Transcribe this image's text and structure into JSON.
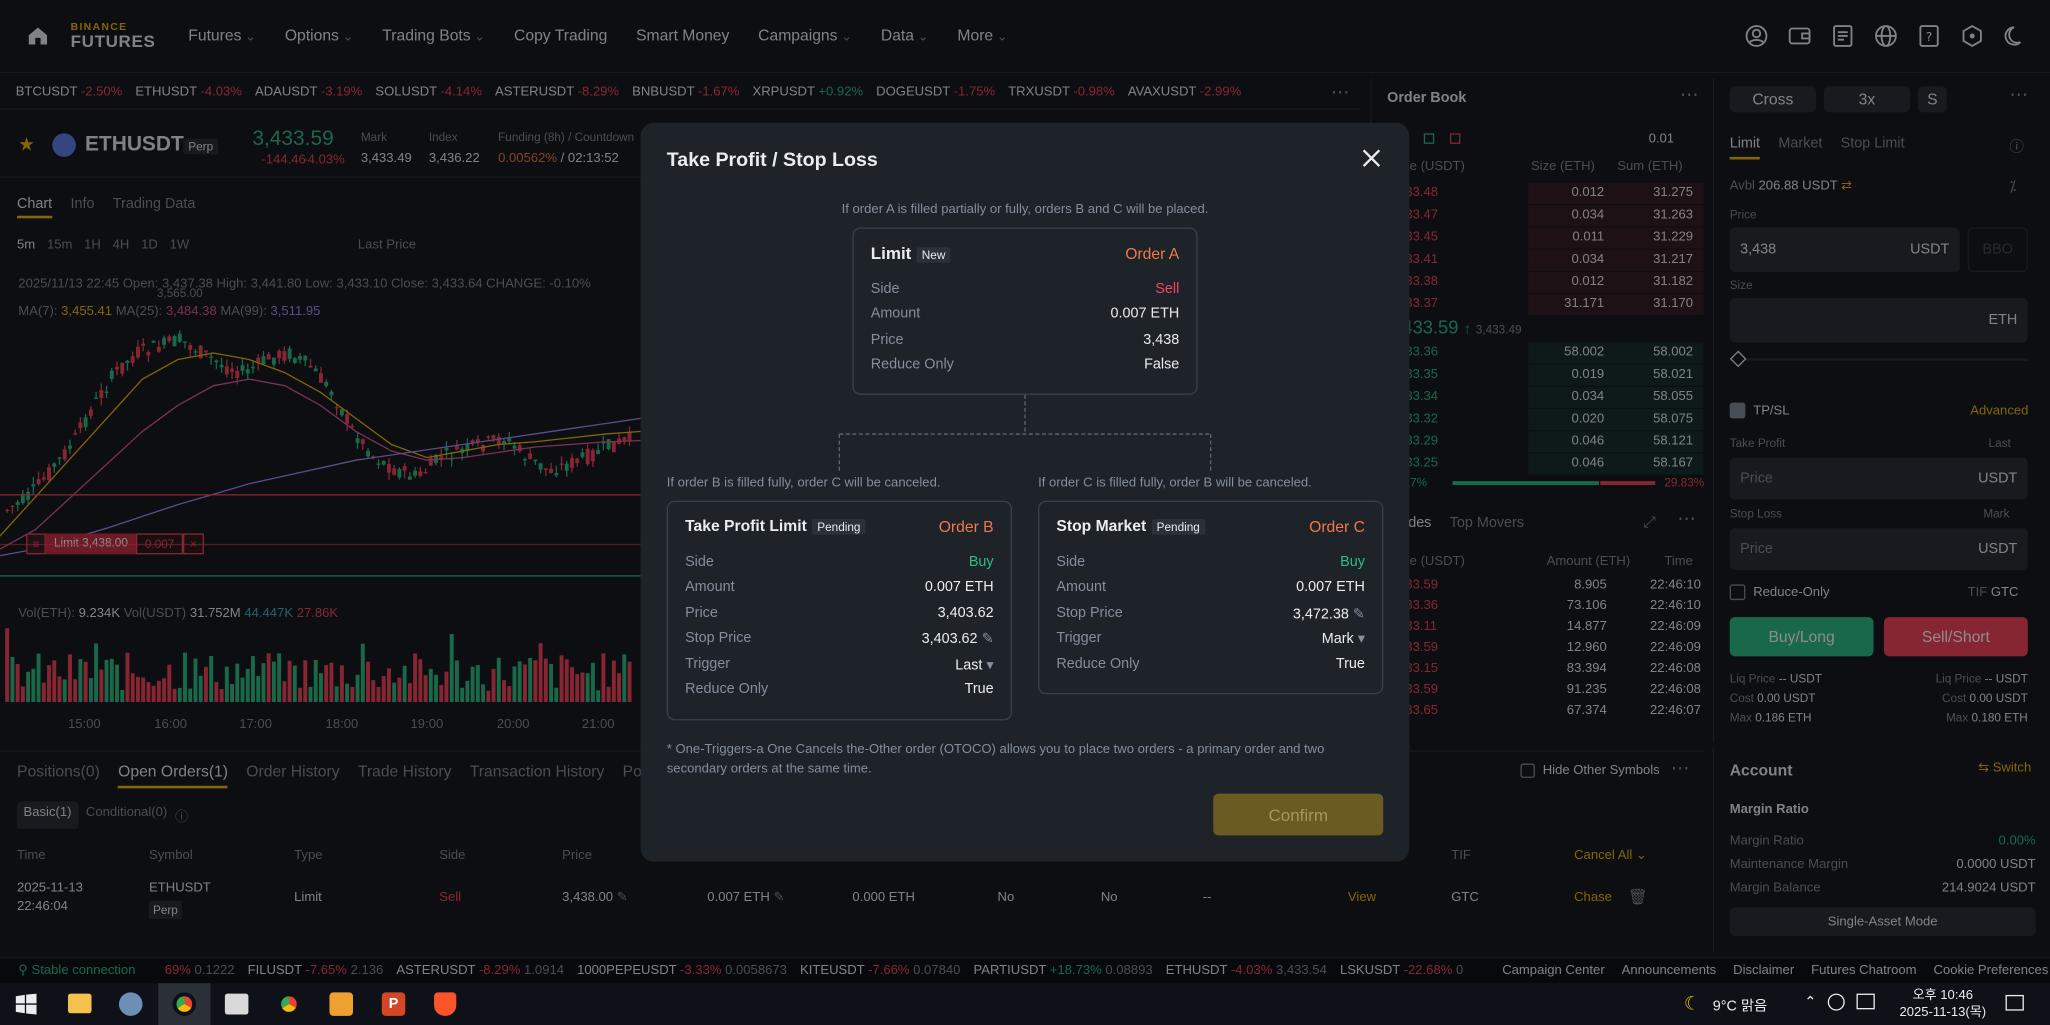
{
  "topbar": {
    "logo_top": "BINANCE",
    "logo_bottom": "FUTURES",
    "nav": [
      "Futures",
      "Options",
      "Trading Bots",
      "Copy Trading",
      "Smart Money",
      "Campaigns",
      "Data",
      "More"
    ]
  },
  "tickers": [
    {
      "sym": "BTCUSDT",
      "chg": "-2.50%",
      "up": false
    },
    {
      "sym": "ETHUSDT",
      "chg": "-4.03%",
      "up": false
    },
    {
      "sym": "ADAUSDT",
      "chg": "-3.19%",
      "up": false
    },
    {
      "sym": "SOLUSDT",
      "chg": "-4.14%",
      "up": false
    },
    {
      "sym": "ASTERUSDT",
      "chg": "-8.29%",
      "up": false
    },
    {
      "sym": "BNBUSDT",
      "chg": "-1.67%",
      "up": false
    },
    {
      "sym": "XRPUSDT",
      "chg": "+0.92%",
      "up": true
    },
    {
      "sym": "DOGEUSDT",
      "chg": "-1.75%",
      "up": false
    },
    {
      "sym": "TRXUSDT",
      "chg": "-0.98%",
      "up": false
    },
    {
      "sym": "AVAXUSDT",
      "chg": "-2.99%",
      "up": false
    }
  ],
  "symbol": {
    "name": "ETHUSDT",
    "type": "Perp",
    "price": "3,433.59",
    "chg": "-144.46",
    "chgp": "-4.03%",
    "mark_label": "Mark",
    "mark": "3,433.49",
    "index_label": "Index",
    "index": "3,436.22",
    "funding_label": "Funding (8h) / Countdown",
    "funding": "0.00562%",
    "countdown": "02:13:52"
  },
  "chart_tabs": [
    "Chart",
    "Info",
    "Trading Data"
  ],
  "intervals": [
    "5m",
    "15m",
    "1H",
    "4H",
    "1D",
    "1W"
  ],
  "last_price_label": "Last Price",
  "ohlc": "2025/11/13 22:45  Open: 3,437.38  High: 3,441.80  Low: 3,433.10  Close: 3,433.64  CHANGE: -0.10%",
  "ma": {
    "ma7": "3,455.41",
    "ma25": "3,484.38",
    "ma99": "3,511.95"
  },
  "limit_tag": {
    "label": "Limit 3,438.00",
    "qty": "0.007"
  },
  "vol": {
    "label": "Vol(ETH):",
    "eth": "9.234K",
    "usdt_label": "Vol(USDT)",
    "usdt": "31.752M",
    "v1": "44.447K",
    "v2": "27.86K"
  },
  "time_axis": [
    "15:00",
    "16:00",
    "17:00",
    "18:00",
    "19:00",
    "20:00",
    "21:00"
  ],
  "peak_label": "3,565.00",
  "orderbook": {
    "title": "Order Book",
    "tick": "0.01",
    "headers": [
      "Price (USDT)",
      "Size (ETH)",
      "Sum (ETH)"
    ],
    "asks": [
      [
        "3,433.48",
        "0.012",
        "31.275"
      ],
      [
        "3,433.47",
        "0.034",
        "31.263"
      ],
      [
        "3,433.45",
        "0.011",
        "31.229"
      ],
      [
        "3,433.41",
        "0.034",
        "31.217"
      ],
      [
        "3,433.38",
        "0.012",
        "31.182"
      ],
      [
        "3,433.37",
        "31.171",
        "31.170"
      ]
    ],
    "mid": "3,433.59",
    "mid_mark": "3,433.49",
    "bids": [
      [
        "3,433.36",
        "58.002",
        "58.002"
      ],
      [
        "3,433.35",
        "0.019",
        "58.021"
      ],
      [
        "3,433.34",
        "0.034",
        "58.055"
      ],
      [
        "3,433.32",
        "0.020",
        "58.075"
      ],
      [
        "3,433.29",
        "0.046",
        "58.121"
      ],
      [
        "3,433.25",
        "0.046",
        "58.167"
      ]
    ],
    "buy_pct": "70.17%",
    "sell_pct": "29.83%"
  },
  "trades": {
    "tab1": "Trades",
    "tab2": "Top Movers",
    "headers": [
      "Price (USDT)",
      "Amount (ETH)",
      "Time"
    ],
    "rows": [
      [
        "3,433.59",
        "8.905",
        "22:46:10"
      ],
      [
        "3,433.36",
        "73.106",
        "22:46:10"
      ],
      [
        "3,433.11",
        "14.877",
        "22:46:09"
      ],
      [
        "3,433.59",
        "12.960",
        "22:46:09"
      ],
      [
        "3,433.15",
        "83.394",
        "22:46:08"
      ],
      [
        "3,433.59",
        "91.235",
        "22:46:08"
      ],
      [
        "3,433.65",
        "67.374",
        "22:46:07"
      ]
    ]
  },
  "orderform": {
    "margin": "Cross",
    "leverage": "3x",
    "mode": "S",
    "types": [
      "Limit",
      "Market",
      "Stop Limit"
    ],
    "avbl_label": "Avbl",
    "avbl": "206.88 USDT",
    "price_label": "Price",
    "price": "3,438",
    "unit": "USDT",
    "bbo": "BBO",
    "size_label": "Size",
    "size_unit": "ETH",
    "tpsl": "TP/SL",
    "advanced": "Advanced",
    "tp_label": "Take Profit",
    "tp_trig": "Last",
    "tp_ph": "Price",
    "sl_label": "Stop Loss",
    "sl_trig": "Mark",
    "sl_ph": "Price",
    "reduce": "Reduce-Only",
    "tif_label": "TIF",
    "tif": "GTC",
    "buy": "Buy/Long",
    "sell": "Sell/Short",
    "liq_l": "Liq Price",
    "liq_lv": "-- USDT",
    "liq_r": "Liq Price",
    "liq_rv": "-- USDT",
    "cost_l": "Cost",
    "cost_lv": "0.00 USDT",
    "cost_r": "Cost",
    "cost_rv": "0.00 USDT",
    "max_l": "Max",
    "max_lv": "0.186 ETH",
    "max_r": "Max",
    "max_rv": "0.180 ETH"
  },
  "account": {
    "title": "Account",
    "switch": "Switch",
    "mr_title": "Margin Ratio",
    "mr_label": "Margin Ratio",
    "mr": "0.00%",
    "mm_label": "Maintenance Margin",
    "mm": "0.0000 USDT",
    "mb_label": "Margin Balance",
    "mb": "214.9024 USDT",
    "mode": "Single-Asset Mode"
  },
  "bottom": {
    "tabs": [
      "Positions(0)",
      "Open Orders(1)",
      "Order History",
      "Trade History",
      "Transaction History",
      "Position"
    ],
    "hide": "Hide Other Symbols",
    "sub": [
      "Basic(1)",
      "Conditional(0)"
    ],
    "cols": [
      "Time",
      "Symbol",
      "Type",
      "Side",
      "Price",
      "",
      "",
      "",
      "",
      "",
      "TIF"
    ],
    "cancel_all": "Cancel All",
    "row": {
      "date": "2025-11-13",
      "time": "22:46:04",
      "symbol": "ETHUSDT",
      "perp": "Perp",
      "type": "Limit",
      "side": "Sell",
      "price": "3,438.00",
      "amount": "0.007 ETH",
      "filled": "0.000 ETH",
      "r1": "No",
      "r2": "No",
      "trig": "--",
      "view": "View",
      "tif": "GTC",
      "chase": "Chase"
    }
  },
  "statusbar": {
    "conn": "Stable connection",
    "items": [
      [
        "",
        "69%",
        "0.1222"
      ],
      [
        "FILUSDT",
        "-7.65%",
        "2.136"
      ],
      [
        "ASTERUSDT",
        "-8.29%",
        "1.0914"
      ],
      [
        "1000PEPEUSDT",
        "-3.33%",
        "0.0058673"
      ],
      [
        "KITEUSDT",
        "-7.66%",
        "0.07840"
      ],
      [
        "PARTIUSDT",
        "+18.73%",
        "0.08893"
      ],
      [
        "ETHUSDT",
        "-4.03%",
        "3,433.54"
      ],
      [
        "LSKUSDT",
        "-22.68%",
        "0"
      ]
    ],
    "links": [
      "Campaign Center",
      "Announcements",
      "Disclaimer",
      "Futures Chatroom",
      "Cookie Preferences"
    ]
  },
  "modal": {
    "title": "Take Profit / Stop Loss",
    "note_a": "If order A is filled partially or fully, orders B and C will be placed.",
    "a": {
      "title": "Limit",
      "tag": "New",
      "label": "Order A",
      "rows": [
        [
          "Side",
          "Sell"
        ],
        [
          "Amount",
          "0.007 ETH"
        ],
        [
          "Price",
          "3,438"
        ],
        [
          "Reduce Only",
          "False"
        ]
      ]
    },
    "note_b": "If order B is filled fully, order C will be canceled.",
    "note_c": "If order C is filled fully, order B will be canceled.",
    "b": {
      "title": "Take Profit Limit",
      "tag": "Pending",
      "label": "Order B",
      "rows": [
        [
          "Side",
          "Buy"
        ],
        [
          "Amount",
          "0.007 ETH"
        ],
        [
          "Price",
          "3,403.62"
        ],
        [
          "Stop Price",
          "3,403.62"
        ],
        [
          "Trigger",
          "Last"
        ],
        [
          "Reduce Only",
          "True"
        ]
      ]
    },
    "c": {
      "title": "Stop Market",
      "tag": "Pending",
      "label": "Order C",
      "rows": [
        [
          "Side",
          "Buy"
        ],
        [
          "Amount",
          "0.007 ETH"
        ],
        [
          "Stop Price",
          "3,472.38"
        ],
        [
          "Trigger",
          "Mark"
        ],
        [
          "Reduce Only",
          "True"
        ]
      ]
    },
    "footnote": "* One-Triggers-a One Cancels the-Other order (OTOCO) allows you to place two orders - a primary order and two secondary orders at the same time.",
    "confirm": "Confirm"
  },
  "taskbar": {
    "weather": "9°C  맑음",
    "time": "오후 10:46",
    "date": "2025-11-13(목)"
  }
}
